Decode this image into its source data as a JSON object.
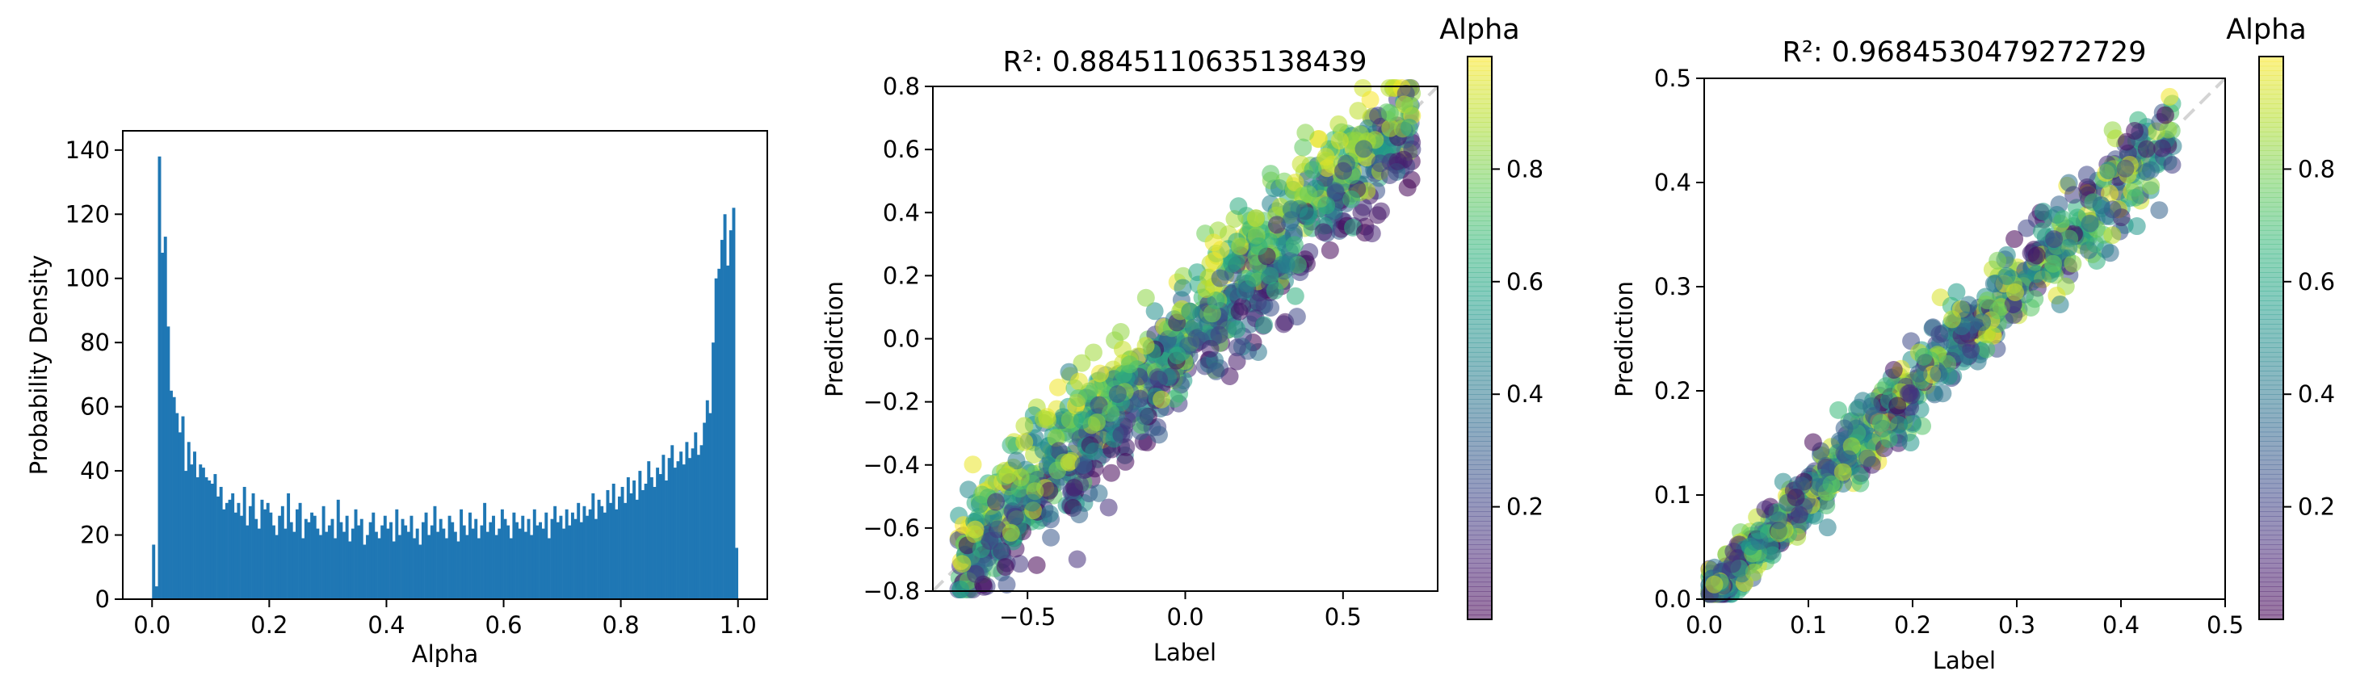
{
  "colors": {
    "bar": "#1f77b4",
    "diagonal": "#b0b0b0",
    "viridis": [
      "#440154",
      "#482878",
      "#3e4a89",
      "#31688e",
      "#26828e",
      "#1f9e89",
      "#35b779",
      "#6ece58",
      "#b5de2b",
      "#fde725"
    ]
  },
  "chart_data": [
    {
      "type": "histogram",
      "title": "",
      "xlabel": "Alpha",
      "ylabel": "Probability Density",
      "xlim": [
        -0.05,
        1.05
      ],
      "ylim": [
        0,
        146
      ],
      "xticks": [
        0.0,
        0.2,
        0.4,
        0.6,
        0.8,
        1.0
      ],
      "xtick_labels": [
        "0.0",
        "0.2",
        "0.4",
        "0.6",
        "0.8",
        "1.0"
      ],
      "yticks": [
        0,
        20,
        40,
        60,
        80,
        100,
        120,
        140
      ],
      "ytick_labels": [
        "0",
        "20",
        "40",
        "60",
        "80",
        "100",
        "120",
        "140"
      ],
      "bins": 200,
      "range": [
        0.0,
        1.0
      ],
      "values": [
        17,
        4,
        138,
        108,
        113,
        85,
        65,
        63,
        58,
        52,
        57,
        40,
        49,
        42,
        46,
        38,
        42,
        41,
        38,
        37,
        36,
        39,
        32,
        35,
        28,
        30,
        31,
        33,
        27,
        30,
        26,
        35,
        23,
        29,
        33,
        25,
        22,
        31,
        28,
        30,
        27,
        23,
        20,
        26,
        29,
        22,
        33,
        24,
        21,
        28,
        30,
        19,
        25,
        24,
        27,
        26,
        22,
        20,
        29,
        21,
        23,
        25,
        19,
        31,
        24,
        21,
        26,
        18,
        22,
        28,
        23,
        25,
        17,
        20,
        24,
        27,
        21,
        19,
        23,
        26,
        22,
        24,
        18,
        28,
        20,
        25,
        23,
        21,
        26,
        19,
        22,
        17,
        24,
        27,
        20,
        23,
        29,
        21,
        25,
        22,
        19,
        26,
        24,
        21,
        18,
        28,
        23,
        20,
        27,
        22,
        25,
        19,
        23,
        30,
        21,
        24,
        26,
        20,
        22,
        28,
        25,
        23,
        19,
        27,
        24,
        22,
        26,
        21,
        25,
        20,
        28,
        23,
        24,
        22,
        27,
        19,
        25,
        29,
        24,
        26,
        22,
        28,
        23,
        27,
        25,
        30,
        24,
        29,
        26,
        28,
        33,
        25,
        31,
        29,
        27,
        34,
        30,
        36,
        28,
        32,
        35,
        30,
        38,
        33,
        37,
        31,
        40,
        34,
        36,
        43,
        38,
        35,
        41,
        39,
        45,
        37,
        44,
        48,
        41,
        43,
        46,
        42,
        49,
        44,
        47,
        52,
        45,
        48,
        55,
        62,
        58,
        80,
        100,
        103,
        112,
        120,
        104,
        115,
        122,
        16
      ],
      "color_key": "bar"
    },
    {
      "type": "scatter",
      "title": "R²: 0.8845110635138439",
      "xlabel": "Label",
      "ylabel": "Prediction",
      "xlim": [
        -0.8,
        0.8
      ],
      "ylim": [
        -0.8,
        0.8
      ],
      "xticks": [
        -0.5,
        0.0,
        0.5
      ],
      "xtick_labels": [
        "−0.5",
        "0.0",
        "0.5"
      ],
      "yticks": [
        -0.8,
        -0.6,
        -0.4,
        -0.2,
        0.0,
        0.2,
        0.4,
        0.6,
        0.8
      ],
      "ytick_labels": [
        "−0.8",
        "−0.6",
        "−0.4",
        "−0.2",
        "0.0",
        "0.2",
        "0.4",
        "0.6",
        "0.8"
      ],
      "diagonal": true,
      "colorbar": {
        "label": "Alpha",
        "range": [
          0.0,
          1.0
        ],
        "ticks": [
          0.2,
          0.4,
          0.6,
          0.8
        ],
        "tick_labels": [
          "0.2",
          "0.4",
          "0.6",
          "0.8"
        ]
      },
      "points": {
        "n": 1100,
        "seed": 7,
        "x_range": [
          -0.72,
          0.72
        ],
        "noise_sd": 0.09,
        "alpha_bias": 0.09
      }
    },
    {
      "type": "scatter",
      "title": "R²: 0.9684530479272729",
      "xlabel": "Label",
      "ylabel": "Prediction",
      "xlim": [
        0.0,
        0.5
      ],
      "ylim": [
        0.0,
        0.5
      ],
      "xticks": [
        0.0,
        0.1,
        0.2,
        0.3,
        0.4,
        0.5
      ],
      "xtick_labels": [
        "0.0",
        "0.1",
        "0.2",
        "0.3",
        "0.4",
        "0.5"
      ],
      "yticks": [
        0.0,
        0.1,
        0.2,
        0.3,
        0.4,
        0.5
      ],
      "ytick_labels": [
        "0.0",
        "0.1",
        "0.2",
        "0.3",
        "0.4",
        "0.5"
      ],
      "diagonal": true,
      "colorbar": {
        "label": "Alpha",
        "range": [
          0.0,
          1.0
        ],
        "ticks": [
          0.2,
          0.4,
          0.6,
          0.8
        ],
        "tick_labels": [
          "0.2",
          "0.4",
          "0.6",
          "0.8"
        ]
      },
      "points": {
        "n": 900,
        "seed": 13,
        "x_range": [
          0.0,
          0.45
        ],
        "noise_sd": 0.018,
        "alpha_bias": 0.0
      }
    }
  ]
}
